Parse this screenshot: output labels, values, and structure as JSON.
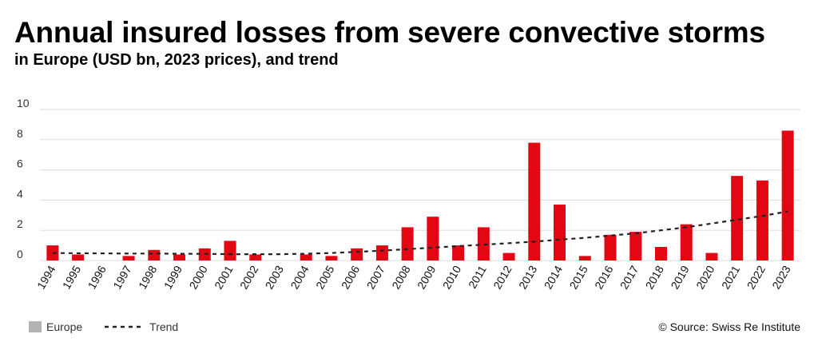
{
  "title": "Annual insured losses from severe convective storms",
  "subtitle": "in Europe (USD bn, 2023 prices), and trend",
  "source": "© Source: Swiss Re Institute",
  "colors": {
    "bar": "#e30613",
    "trend": "#222222",
    "legend_swatch": "#b3b3b3",
    "grid": "#dddddd"
  },
  "chart_data": {
    "type": "bar",
    "title": "Annual insured losses from severe convective storms",
    "subtitle": "in Europe (USD bn, 2023 prices), and trend",
    "xlabel": "",
    "ylabel": "",
    "ylim": [
      0,
      10
    ],
    "yticks": [
      0,
      2,
      4,
      6,
      8,
      10
    ],
    "grid": true,
    "legend_position": "bottom-left",
    "categories": [
      "1994",
      "1995",
      "1996",
      "1997",
      "1998",
      "1999",
      "2000",
      "2001",
      "2002",
      "2003",
      "2004",
      "2005",
      "2006",
      "2007",
      "2008",
      "2009",
      "2010",
      "2011",
      "2012",
      "2013",
      "2014",
      "2015",
      "2016",
      "2017",
      "2018",
      "2019",
      "2020",
      "2021",
      "2022",
      "2023"
    ],
    "series": [
      {
        "name": "Europe",
        "type": "bar",
        "values": [
          1.0,
          0.4,
          0.0,
          0.3,
          0.7,
          0.4,
          0.8,
          1.3,
          0.4,
          0.0,
          0.4,
          0.3,
          0.8,
          1.0,
          2.2,
          2.9,
          1.0,
          2.2,
          0.5,
          7.8,
          3.7,
          0.3,
          1.7,
          1.9,
          0.9,
          2.4,
          0.5,
          5.6,
          5.3,
          8.6
        ]
      },
      {
        "name": "Trend",
        "type": "line",
        "style": "dashed",
        "values": [
          0.5,
          0.48,
          0.47,
          0.46,
          0.46,
          0.45,
          0.44,
          0.42,
          0.42,
          0.42,
          0.45,
          0.5,
          0.57,
          0.65,
          0.75,
          0.85,
          0.95,
          1.05,
          1.15,
          1.25,
          1.38,
          1.5,
          1.65,
          1.8,
          2.0,
          2.2,
          2.45,
          2.7,
          2.95,
          3.25
        ]
      }
    ]
  }
}
